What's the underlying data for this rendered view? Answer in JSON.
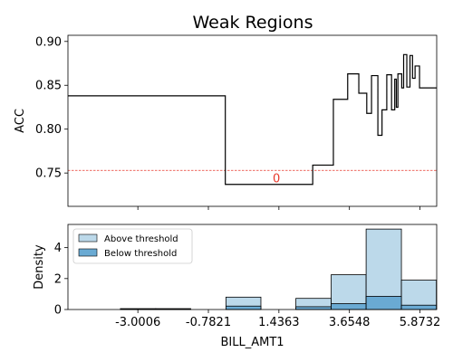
{
  "chart_data": [
    {
      "type": "line",
      "title": "Weak Regions",
      "xlabel": "",
      "ylabel": "ACC",
      "xlim": [
        -5.2,
        6.4
      ],
      "ylim": [
        0.712,
        0.907
      ],
      "yticks": [
        0.75,
        0.8,
        0.85,
        0.9
      ],
      "ytick_labels": [
        "0.75",
        "0.80",
        "0.85",
        "0.90"
      ],
      "threshold": 0.753,
      "region_label": "0",
      "region_label_pos": [
        1.36,
        0.744
      ],
      "series": [
        {
          "points": [
            [
              -5.2,
              0.838
            ],
            [
              -0.25,
              0.838
            ],
            [
              -0.25,
              0.737
            ],
            [
              2.5,
              0.737
            ],
            [
              2.5,
              0.759
            ],
            [
              3.15,
              0.759
            ],
            [
              3.15,
              0.834
            ],
            [
              3.6,
              0.834
            ],
            [
              3.6,
              0.863
            ],
            [
              3.95,
              0.863
            ],
            [
              3.95,
              0.841
            ],
            [
              4.2,
              0.841
            ],
            [
              4.2,
              0.818
            ],
            [
              4.35,
              0.818
            ],
            [
              4.35,
              0.861
            ],
            [
              4.55,
              0.861
            ],
            [
              4.55,
              0.793
            ],
            [
              4.68,
              0.793
            ],
            [
              4.68,
              0.822
            ],
            [
              4.83,
              0.822
            ],
            [
              4.83,
              0.862
            ],
            [
              4.98,
              0.862
            ],
            [
              4.98,
              0.822
            ],
            [
              5.08,
              0.822
            ],
            [
              5.08,
              0.857
            ],
            [
              5.13,
              0.857
            ],
            [
              5.13,
              0.825
            ],
            [
              5.18,
              0.825
            ],
            [
              5.18,
              0.863
            ],
            [
              5.3,
              0.863
            ],
            [
              5.3,
              0.847
            ],
            [
              5.36,
              0.847
            ],
            [
              5.36,
              0.885
            ],
            [
              5.46,
              0.885
            ],
            [
              5.46,
              0.848
            ],
            [
              5.56,
              0.848
            ],
            [
              5.56,
              0.884
            ],
            [
              5.64,
              0.884
            ],
            [
              5.64,
              0.858
            ],
            [
              5.72,
              0.858
            ],
            [
              5.72,
              0.872
            ],
            [
              5.86,
              0.872
            ],
            [
              5.86,
              0.847
            ],
            [
              6.4,
              0.847
            ]
          ]
        }
      ]
    },
    {
      "type": "bar",
      "xlabel": "BILL_AMT1",
      "ylabel": "Density",
      "xlim": [
        -5.2,
        6.4
      ],
      "ylim": [
        0,
        5.5
      ],
      "xticks": [
        -3.0006,
        -0.7821,
        1.4363,
        3.6548,
        5.8732
      ],
      "xtick_labels": [
        "-3.0006",
        "-0.7821",
        "1.4363",
        "3.6548",
        "5.8732"
      ],
      "yticks": [
        0,
        2,
        4
      ],
      "ytick_labels": [
        "0",
        "2",
        "4"
      ],
      "bin_edges": [
        -4.65,
        -3.55,
        -2.44,
        -1.34,
        -0.23,
        0.87,
        1.97,
        3.08,
        4.18,
        5.29,
        6.39
      ],
      "legend": {
        "position": "top-left"
      },
      "series": [
        {
          "name": "Above threshold",
          "color": "#bcd9ea",
          "values": [
            0.0,
            0.05,
            0.05,
            0.0,
            0.8,
            0.0,
            0.72,
            2.25,
            5.2,
            1.9
          ]
        },
        {
          "name": "Below threshold",
          "color": "#6aaad3",
          "values": [
            0.0,
            0.05,
            0.05,
            0.0,
            0.22,
            0.0,
            0.18,
            0.38,
            0.85,
            0.28
          ]
        }
      ]
    }
  ]
}
